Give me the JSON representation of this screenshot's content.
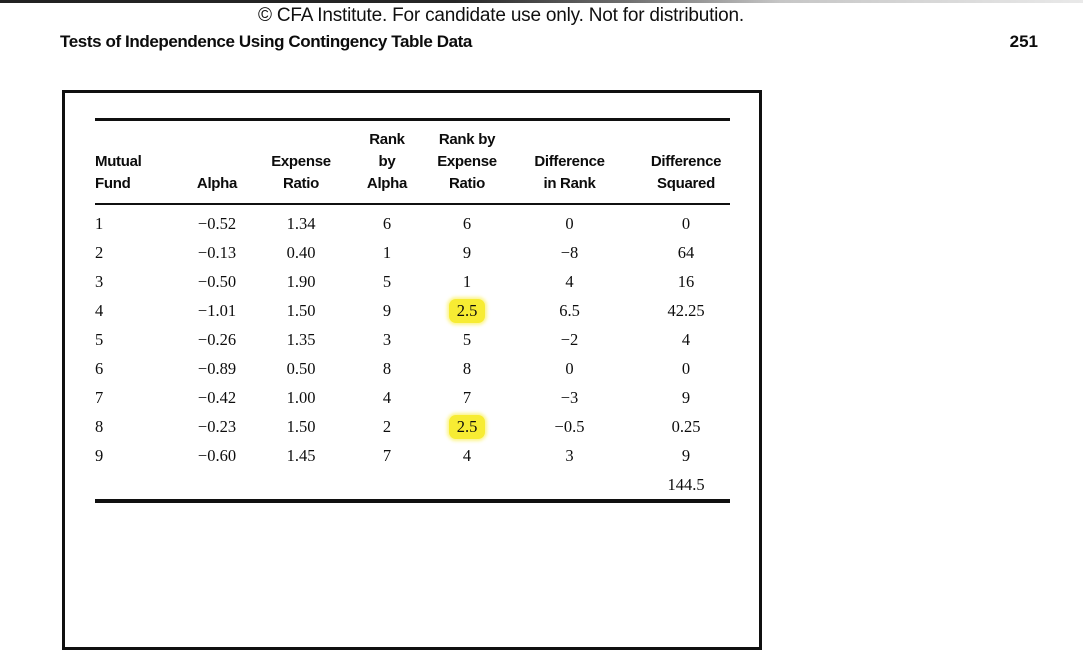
{
  "page": {
    "copyright": "© CFA Institute. For candidate use only. Not for distribution.",
    "section_title": "Tests of Independence Using Contingency Table Data",
    "page_number": "251"
  },
  "table": {
    "columns": [
      {
        "key": "mutual-fund",
        "label": "Mutual\nFund",
        "align": "left"
      },
      {
        "key": "alpha",
        "label": "Alpha",
        "align": "center"
      },
      {
        "key": "expense-ratio",
        "label": "Expense\nRatio",
        "align": "center"
      },
      {
        "key": "rank-by-alpha",
        "label": "Rank\nby\nAlpha",
        "align": "center"
      },
      {
        "key": "rank-by-expense-ratio",
        "label": "Rank by\nExpense\nRatio",
        "align": "center"
      },
      {
        "key": "difference-in-rank",
        "label": "Difference\nin Rank",
        "align": "center"
      },
      {
        "key": "difference-squared",
        "label": "Difference\nSquared",
        "align": "center"
      }
    ],
    "rows": [
      [
        "1",
        "−0.52",
        "1.34",
        "6",
        "6",
        "0",
        "0"
      ],
      [
        "2",
        "−0.13",
        "0.40",
        "1",
        "9",
        "−8",
        "64"
      ],
      [
        "3",
        "−0.50",
        "1.90",
        "5",
        "1",
        "4",
        "16"
      ],
      [
        "4",
        "−1.01",
        "1.50",
        "9",
        "2.5",
        "6.5",
        "42.25"
      ],
      [
        "5",
        "−0.26",
        "1.35",
        "3",
        "5",
        "−2",
        "4"
      ],
      [
        "6",
        "−0.89",
        "0.50",
        "8",
        "8",
        "0",
        "0"
      ],
      [
        "7",
        "−0.42",
        "1.00",
        "4",
        "7",
        "−3",
        "9"
      ],
      [
        "8",
        "−0.23",
        "1.50",
        "2",
        "2.5",
        "−0.5",
        "0.25"
      ],
      [
        "9",
        "−0.60",
        "1.45",
        "7",
        "4",
        "3",
        "9"
      ]
    ],
    "highlighted_cells": [
      {
        "row": 3,
        "col": 4
      },
      {
        "row": 7,
        "col": 4
      }
    ],
    "total_sum": "144.5",
    "highlight_color": "#f7ec33"
  }
}
